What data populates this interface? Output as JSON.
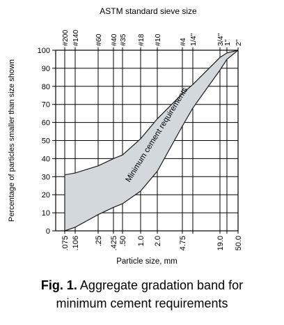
{
  "chart_data": {
    "type": "area",
    "title": "ASTM standard sieve size",
    "xlabel": "Particle size, mm",
    "ylabel": "Percentage of particles smaller than size shown",
    "x_scale": "sieve (approx. log)",
    "ylim": [
      0,
      100
    ],
    "grid": true,
    "legend": "none",
    "y_ticks": [
      0,
      10,
      20,
      30,
      40,
      50,
      60,
      70,
      80,
      90,
      100
    ],
    "x_ticks": [
      {
        "mm": 0.075,
        "label": ".075",
        "sieve": "#200"
      },
      {
        "mm": 0.106,
        "label": ".106",
        "sieve": "#140"
      },
      {
        "mm": 0.25,
        "label": ".25",
        "sieve": "#60"
      },
      {
        "mm": 0.425,
        "label": ".425",
        "sieve": "#40"
      },
      {
        "mm": 0.5,
        "label": ".50",
        "sieve": "#35"
      },
      {
        "mm": 1.0,
        "label": "1.0",
        "sieve": "#18"
      },
      {
        "mm": 2.0,
        "label": "2.0",
        "sieve": "#10"
      },
      {
        "mm": 4.75,
        "label": "4.75",
        "sieve": "#4"
      },
      {
        "mm": 6.3,
        "label": "",
        "sieve": "1/4\""
      },
      {
        "mm": 19.0,
        "label": "19.0",
        "sieve": "3/4\""
      },
      {
        "mm": 25.0,
        "label": "",
        "sieve": "1\""
      },
      {
        "mm": 50.0,
        "label": "50.0",
        "sieve": "2\""
      }
    ],
    "series": [
      {
        "name": "",
        "role": "upper boundary",
        "points": [
          {
            "x": 0.075,
            "y": 31
          },
          {
            "x": 0.106,
            "y": 32
          },
          {
            "x": 0.25,
            "y": 36
          },
          {
            "x": 0.425,
            "y": 40
          },
          {
            "x": 0.5,
            "y": 42
          },
          {
            "x": 1.0,
            "y": 51
          },
          {
            "x": 2.0,
            "y": 62
          },
          {
            "x": 4.75,
            "y": 76
          },
          {
            "x": 6.3,
            "y": 81
          },
          {
            "x": 19.0,
            "y": 96
          },
          {
            "x": 25.0,
            "y": 98.5
          },
          {
            "x": 50.0,
            "y": 100
          }
        ]
      },
      {
        "name": "",
        "role": "lower boundary",
        "points": [
          {
            "x": 0.075,
            "y": 0
          },
          {
            "x": 0.106,
            "y": 2
          },
          {
            "x": 0.25,
            "y": 9
          },
          {
            "x": 0.425,
            "y": 13
          },
          {
            "x": 0.5,
            "y": 15
          },
          {
            "x": 1.0,
            "y": 22
          },
          {
            "x": 2.0,
            "y": 33
          },
          {
            "x": 4.75,
            "y": 58
          },
          {
            "x": 6.3,
            "y": 68
          },
          {
            "x": 19.0,
            "y": 89
          },
          {
            "x": 25.0,
            "y": 95
          },
          {
            "x": 50.0,
            "y": 100
          }
        ]
      }
    ],
    "band_label": "Minimum cement requirements",
    "colors": {
      "band_fill": "#d3d8dd",
      "band_stroke": "#1a1a1a",
      "grid": "#000000",
      "text": "#000000"
    }
  },
  "caption": {
    "label": "Fig. 1.",
    "text_line1": "Aggregate gradation band for",
    "text_line2": "minimum cement requirements"
  }
}
